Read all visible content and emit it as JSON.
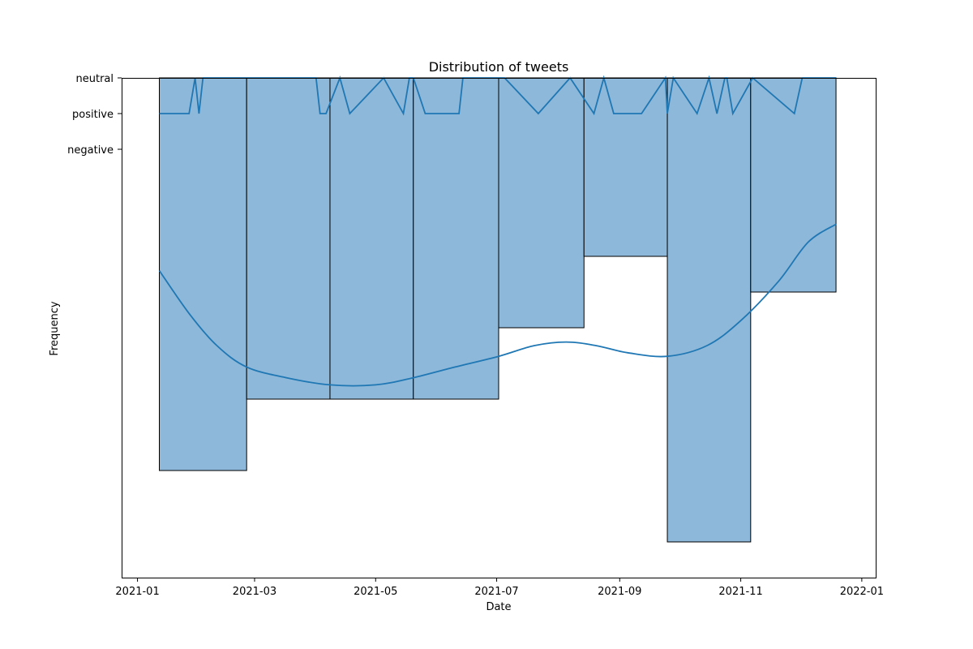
{
  "chart_data": {
    "type": "bar",
    "title": "Distribution of tweets",
    "xlabel": "Date",
    "ylabel": "Frequency",
    "xlim": [
      "2020-12-24",
      "2022-01-08"
    ],
    "x_ticks": [
      "2021-01",
      "2021-03",
      "2021-05",
      "2021-07",
      "2021-09",
      "2021-11",
      "2022-01"
    ],
    "y_ticks": [
      "neutral",
      "positive",
      "negative"
    ],
    "y_axis_inverted": true,
    "grid": false,
    "colors": {
      "bar_fill": "#8db8d9",
      "bar_edge": "#000000",
      "line": "#1f77b4"
    },
    "bins": [
      {
        "start": "2021-01-12",
        "end": "2021-02-25",
        "value": 11
      },
      {
        "start": "2021-02-25",
        "end": "2021-04-08",
        "value": 9
      },
      {
        "start": "2021-04-08",
        "end": "2021-05-20",
        "value": 9
      },
      {
        "start": "2021-05-20",
        "end": "2021-07-02",
        "value": 9
      },
      {
        "start": "2021-07-02",
        "end": "2021-08-14",
        "value": 7
      },
      {
        "start": "2021-08-14",
        "end": "2021-09-25",
        "value": 5
      },
      {
        "start": "2021-09-25",
        "end": "2021-11-06",
        "value": 13
      },
      {
        "start": "2021-11-06",
        "end": "2021-12-19",
        "value": 6
      }
    ],
    "kde": [
      {
        "x": "2021-01-12",
        "y": 5.4
      },
      {
        "x": "2021-01-27",
        "y": 6.6
      },
      {
        "x": "2021-02-10",
        "y": 7.5
      },
      {
        "x": "2021-02-25",
        "y": 8.1
      },
      {
        "x": "2021-03-17",
        "y": 8.4
      },
      {
        "x": "2021-04-08",
        "y": 8.6
      },
      {
        "x": "2021-05-01",
        "y": 8.6
      },
      {
        "x": "2021-05-20",
        "y": 8.4
      },
      {
        "x": "2021-06-10",
        "y": 8.1
      },
      {
        "x": "2021-07-02",
        "y": 7.8
      },
      {
        "x": "2021-07-20",
        "y": 7.5
      },
      {
        "x": "2021-08-05",
        "y": 7.4
      },
      {
        "x": "2021-08-20",
        "y": 7.5
      },
      {
        "x": "2021-09-05",
        "y": 7.7
      },
      {
        "x": "2021-09-25",
        "y": 7.8
      },
      {
        "x": "2021-10-15",
        "y": 7.5
      },
      {
        "x": "2021-11-01",
        "y": 6.8
      },
      {
        "x": "2021-11-20",
        "y": 5.7
      },
      {
        "x": "2021-12-05",
        "y": 4.6
      },
      {
        "x": "2021-12-19",
        "y": 4.1
      }
    ],
    "sentiment_series": {
      "name": "sentiment",
      "points": [
        {
          "x": "2021-01-12",
          "y": "positive"
        },
        {
          "x": "2021-01-15",
          "y": "positive"
        },
        {
          "x": "2021-01-27",
          "y": "positive"
        },
        {
          "x": "2021-01-30",
          "y": "neutral"
        },
        {
          "x": "2021-02-01",
          "y": "positive"
        },
        {
          "x": "2021-02-03",
          "y": "neutral"
        },
        {
          "x": "2021-04-01",
          "y": "neutral"
        },
        {
          "x": "2021-04-03",
          "y": "positive"
        },
        {
          "x": "2021-04-06",
          "y": "positive"
        },
        {
          "x": "2021-04-13",
          "y": "neutral"
        },
        {
          "x": "2021-04-18",
          "y": "positive"
        },
        {
          "x": "2021-05-05",
          "y": "neutral"
        },
        {
          "x": "2021-05-15",
          "y": "positive"
        },
        {
          "x": "2021-05-18",
          "y": "neutral"
        },
        {
          "x": "2021-05-20",
          "y": "neutral"
        },
        {
          "x": "2021-05-26",
          "y": "positive"
        },
        {
          "x": "2021-06-12",
          "y": "positive"
        },
        {
          "x": "2021-06-14",
          "y": "neutral"
        },
        {
          "x": "2021-07-05",
          "y": "neutral"
        },
        {
          "x": "2021-07-22",
          "y": "positive"
        },
        {
          "x": "2021-08-07",
          "y": "neutral"
        },
        {
          "x": "2021-08-19",
          "y": "positive"
        },
        {
          "x": "2021-08-24",
          "y": "neutral"
        },
        {
          "x": "2021-08-29",
          "y": "positive"
        },
        {
          "x": "2021-09-12",
          "y": "positive"
        },
        {
          "x": "2021-09-24",
          "y": "neutral"
        },
        {
          "x": "2021-09-25",
          "y": "positive"
        },
        {
          "x": "2021-09-28",
          "y": "neutral"
        },
        {
          "x": "2021-10-10",
          "y": "positive"
        },
        {
          "x": "2021-10-16",
          "y": "neutral"
        },
        {
          "x": "2021-10-20",
          "y": "positive"
        },
        {
          "x": "2021-10-24",
          "y": "neutral"
        },
        {
          "x": "2021-10-25",
          "y": "neutral"
        },
        {
          "x": "2021-10-28",
          "y": "positive"
        },
        {
          "x": "2021-11-07",
          "y": "neutral"
        },
        {
          "x": "2021-11-28",
          "y": "positive"
        },
        {
          "x": "2021-12-02",
          "y": "neutral"
        },
        {
          "x": "2021-12-19",
          "y": "neutral"
        }
      ]
    }
  }
}
